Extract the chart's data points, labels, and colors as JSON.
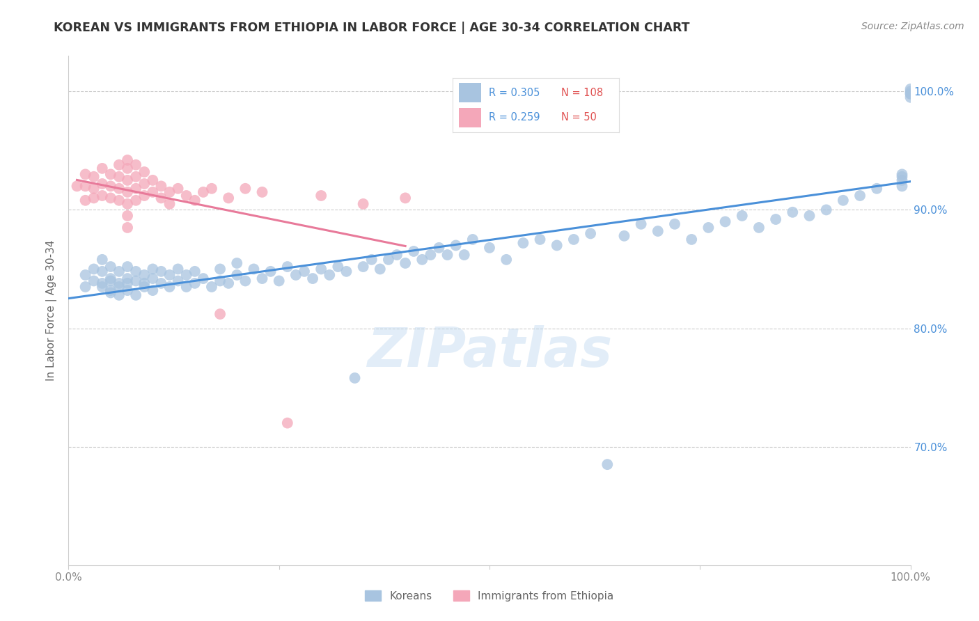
{
  "title": "KOREAN VS IMMIGRANTS FROM ETHIOPIA IN LABOR FORCE | AGE 30-34 CORRELATION CHART",
  "source": "Source: ZipAtlas.com",
  "ylabel": "In Labor Force | Age 30-34",
  "xlim": [
    0.0,
    1.0
  ],
  "ylim": [
    0.6,
    1.03
  ],
  "yticks": [
    0.7,
    0.8,
    0.9,
    1.0
  ],
  "ytick_labels": [
    "70.0%",
    "80.0%",
    "90.0%",
    "100.0%"
  ],
  "xticks": [
    0.0,
    0.25,
    0.5,
    0.75,
    1.0
  ],
  "xtick_labels": [
    "0.0%",
    "",
    "",
    "",
    "100.0%"
  ],
  "korean_R": 0.305,
  "korean_N": 108,
  "ethiopia_R": 0.259,
  "ethiopia_N": 50,
  "blue_color": "#a8c4e0",
  "pink_color": "#f4a7b9",
  "blue_line_color": "#4a90d9",
  "pink_line_color": "#e87a9a",
  "title_color": "#333333",
  "grid_color": "#cccccc",
  "watermark": "ZIPatlas",
  "korean_x": [
    0.02,
    0.02,
    0.03,
    0.03,
    0.04,
    0.04,
    0.04,
    0.04,
    0.05,
    0.05,
    0.05,
    0.05,
    0.05,
    0.06,
    0.06,
    0.06,
    0.06,
    0.07,
    0.07,
    0.07,
    0.07,
    0.08,
    0.08,
    0.08,
    0.09,
    0.09,
    0.09,
    0.1,
    0.1,
    0.1,
    0.11,
    0.11,
    0.12,
    0.12,
    0.13,
    0.13,
    0.14,
    0.14,
    0.15,
    0.15,
    0.16,
    0.17,
    0.18,
    0.18,
    0.19,
    0.2,
    0.2,
    0.21,
    0.22,
    0.23,
    0.24,
    0.25,
    0.26,
    0.27,
    0.28,
    0.29,
    0.3,
    0.31,
    0.32,
    0.33,
    0.34,
    0.35,
    0.36,
    0.37,
    0.38,
    0.39,
    0.4,
    0.41,
    0.42,
    0.43,
    0.44,
    0.45,
    0.46,
    0.47,
    0.48,
    0.5,
    0.52,
    0.54,
    0.56,
    0.58,
    0.6,
    0.62,
    0.64,
    0.66,
    0.68,
    0.7,
    0.72,
    0.74,
    0.76,
    0.78,
    0.8,
    0.82,
    0.84,
    0.86,
    0.88,
    0.9,
    0.92,
    0.94,
    0.96,
    0.99,
    0.99,
    0.99,
    0.99,
    1.0,
    1.0,
    1.0,
    1.0,
    1.0
  ],
  "korean_y": [
    0.835,
    0.845,
    0.84,
    0.85,
    0.838,
    0.848,
    0.858,
    0.835,
    0.832,
    0.842,
    0.852,
    0.83,
    0.84,
    0.828,
    0.838,
    0.848,
    0.835,
    0.832,
    0.842,
    0.852,
    0.838,
    0.828,
    0.84,
    0.848,
    0.835,
    0.845,
    0.838,
    0.832,
    0.842,
    0.85,
    0.838,
    0.848,
    0.835,
    0.845,
    0.84,
    0.85,
    0.835,
    0.845,
    0.838,
    0.848,
    0.842,
    0.835,
    0.84,
    0.85,
    0.838,
    0.845,
    0.855,
    0.84,
    0.85,
    0.842,
    0.848,
    0.84,
    0.852,
    0.845,
    0.848,
    0.842,
    0.85,
    0.845,
    0.852,
    0.848,
    0.758,
    0.852,
    0.858,
    0.85,
    0.858,
    0.862,
    0.855,
    0.865,
    0.858,
    0.862,
    0.868,
    0.862,
    0.87,
    0.862,
    0.875,
    0.868,
    0.858,
    0.872,
    0.875,
    0.87,
    0.875,
    0.88,
    0.685,
    0.878,
    0.888,
    0.882,
    0.888,
    0.875,
    0.885,
    0.89,
    0.895,
    0.885,
    0.892,
    0.898,
    0.895,
    0.9,
    0.908,
    0.912,
    0.918,
    0.92,
    0.925,
    0.928,
    0.93,
    0.995,
    0.998,
    1.002,
    1.0,
    0.998
  ],
  "ethiopia_x": [
    0.01,
    0.02,
    0.02,
    0.02,
    0.03,
    0.03,
    0.03,
    0.04,
    0.04,
    0.04,
    0.05,
    0.05,
    0.05,
    0.06,
    0.06,
    0.06,
    0.06,
    0.07,
    0.07,
    0.07,
    0.07,
    0.07,
    0.07,
    0.07,
    0.08,
    0.08,
    0.08,
    0.08,
    0.09,
    0.09,
    0.09,
    0.1,
    0.1,
    0.11,
    0.11,
    0.12,
    0.12,
    0.13,
    0.14,
    0.15,
    0.16,
    0.17,
    0.18,
    0.19,
    0.21,
    0.23,
    0.26,
    0.3,
    0.35,
    0.4
  ],
  "ethiopia_y": [
    0.92,
    0.93,
    0.92,
    0.908,
    0.928,
    0.918,
    0.91,
    0.935,
    0.922,
    0.912,
    0.93,
    0.92,
    0.91,
    0.938,
    0.928,
    0.918,
    0.908,
    0.942,
    0.935,
    0.925,
    0.915,
    0.905,
    0.895,
    0.885,
    0.938,
    0.928,
    0.918,
    0.908,
    0.932,
    0.922,
    0.912,
    0.925,
    0.915,
    0.92,
    0.91,
    0.915,
    0.905,
    0.918,
    0.912,
    0.908,
    0.915,
    0.918,
    0.812,
    0.91,
    0.918,
    0.915,
    0.72,
    0.912,
    0.905,
    0.91
  ]
}
